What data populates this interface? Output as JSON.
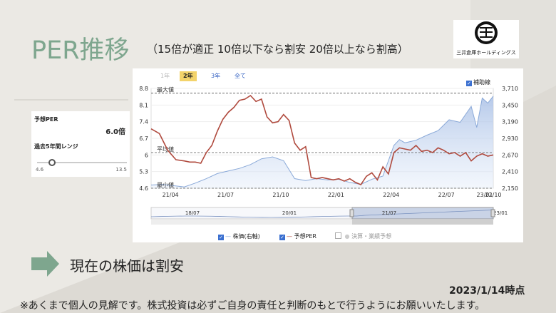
{
  "page": {
    "title": "PER推移",
    "subtitle": "（15倍が適正 10倍以下なら割安 20倍以上なら割高）",
    "conclusion": "現在の株価は割安",
    "as_of": "2023/1/14時点",
    "disclaimer": "※あくまで個人の見解です。株式投資は必ずご自身の責任と判断のもとで行うようにお願いいたします。"
  },
  "logo": {
    "text": "三井倉庫ホールディングス"
  },
  "side_panel": {
    "forecast_per_label": "予想PER",
    "forecast_per_value": "6.0倍",
    "range_label": "過去5年間レンジ",
    "range_min": "4.6",
    "range_max": "13.5",
    "range_current": 6.0
  },
  "tabs": [
    {
      "label": "1年",
      "state": "dim"
    },
    {
      "label": "2年",
      "state": "active"
    },
    {
      "label": "3年",
      "state": "normal"
    },
    {
      "label": "全て",
      "state": "normal"
    }
  ],
  "aux_line": {
    "label": "補助線",
    "checked": true
  },
  "legend": [
    {
      "label": "株価(右軸)",
      "checked": true,
      "color": "#8aa9d8"
    },
    {
      "label": "予想PER",
      "checked": true,
      "color": "#b04a3e"
    },
    {
      "label": "決算・業績予想",
      "checked": false,
      "color": "#cccccc"
    }
  ],
  "chart_data": {
    "type": "line",
    "x_ticks": [
      "21/04",
      "21/07",
      "21/10",
      "22/01",
      "22/04",
      "22/07",
      "22/10",
      "23/01"
    ],
    "y_left": {
      "ticks": [
        "8.8",
        "8.1",
        "7.4",
        "6.7",
        "6",
        "5.3",
        "4.6"
      ],
      "range": [
        4.6,
        8.8
      ]
    },
    "y_right": {
      "ticks": [
        "3,710",
        "3,450",
        "3,190",
        "2,930",
        "2,670",
        "2,410",
        "2,150"
      ],
      "range": [
        2150,
        3710
      ]
    },
    "reference_lines": [
      {
        "label": "最大値",
        "value": 8.6
      },
      {
        "label": "平均値",
        "value": 6.1
      },
      {
        "label": "最小値",
        "value": 4.6
      }
    ],
    "series": [
      {
        "name": "予想PER",
        "axis": "left",
        "color": "#b04a3e",
        "points": [
          [
            0,
            7.1
          ],
          [
            1.5,
            6.9
          ],
          [
            3,
            6.2
          ],
          [
            4.5,
            5.8
          ],
          [
            6,
            5.75
          ],
          [
            7,
            5.7
          ],
          [
            8,
            5.7
          ],
          [
            9,
            5.65
          ],
          [
            10,
            6.1
          ],
          [
            11,
            6.4
          ],
          [
            12,
            7.0
          ],
          [
            13,
            7.5
          ],
          [
            14,
            7.8
          ],
          [
            15,
            8.0
          ],
          [
            16,
            8.3
          ],
          [
            17,
            8.35
          ],
          [
            18,
            8.5
          ],
          [
            19,
            8.25
          ],
          [
            20,
            8.35
          ],
          [
            21,
            7.6
          ],
          [
            22,
            7.35
          ],
          [
            23,
            7.4
          ],
          [
            24,
            7.7
          ],
          [
            25,
            7.45
          ],
          [
            26,
            6.5
          ],
          [
            27,
            6.2
          ],
          [
            28,
            6.35
          ],
          [
            29,
            5.05
          ],
          [
            30,
            5.0
          ],
          [
            31,
            5.05
          ],
          [
            32,
            5.0
          ],
          [
            33,
            4.95
          ],
          [
            34,
            5.0
          ],
          [
            35,
            4.9
          ],
          [
            36,
            5.0
          ],
          [
            37,
            4.85
          ],
          [
            38,
            4.75
          ],
          [
            39,
            5.1
          ],
          [
            40,
            5.25
          ],
          [
            41,
            4.95
          ],
          [
            42,
            5.5
          ],
          [
            43,
            5.2
          ],
          [
            44,
            6.1
          ],
          [
            45,
            6.3
          ],
          [
            46,
            6.25
          ],
          [
            47,
            6.2
          ],
          [
            48,
            6.4
          ],
          [
            49,
            6.15
          ],
          [
            50,
            6.2
          ],
          [
            51,
            6.1
          ],
          [
            52,
            6.3
          ],
          [
            53,
            6.2
          ],
          [
            54,
            6.05
          ],
          [
            55,
            6.1
          ],
          [
            56,
            5.95
          ],
          [
            57,
            6.1
          ],
          [
            58,
            5.75
          ],
          [
            59,
            5.95
          ],
          [
            60,
            6.05
          ],
          [
            61,
            5.95
          ],
          [
            62,
            6.0
          ]
        ]
      },
      {
        "name": "株価(右軸)",
        "axis": "right",
        "color": "#8aa9d8",
        "points": [
          [
            0,
            2200
          ],
          [
            2,
            2210
          ],
          [
            4,
            2190
          ],
          [
            6,
            2170
          ],
          [
            8,
            2230
          ],
          [
            10,
            2300
          ],
          [
            12,
            2380
          ],
          [
            14,
            2420
          ],
          [
            16,
            2460
          ],
          [
            18,
            2520
          ],
          [
            20,
            2610
          ],
          [
            22,
            2640
          ],
          [
            24,
            2580
          ],
          [
            26,
            2300
          ],
          [
            28,
            2270
          ],
          [
            30,
            2300
          ],
          [
            32,
            2280
          ],
          [
            34,
            2290
          ],
          [
            36,
            2240
          ],
          [
            38,
            2210
          ],
          [
            40,
            2290
          ],
          [
            42,
            2340
          ],
          [
            44,
            2820
          ],
          [
            45,
            2910
          ],
          [
            46,
            2860
          ],
          [
            48,
            2900
          ],
          [
            50,
            2980
          ],
          [
            52,
            3050
          ],
          [
            54,
            3220
          ],
          [
            56,
            3180
          ],
          [
            58,
            3430
          ],
          [
            59,
            3100
          ],
          [
            60,
            3560
          ],
          [
            61,
            3480
          ],
          [
            62,
            3590
          ]
        ]
      }
    ],
    "navigator": {
      "labels": [
        "18/07",
        "20/01",
        "21/07",
        "23/01"
      ],
      "selected_range": [
        "21/01",
        "23/01"
      ]
    }
  }
}
